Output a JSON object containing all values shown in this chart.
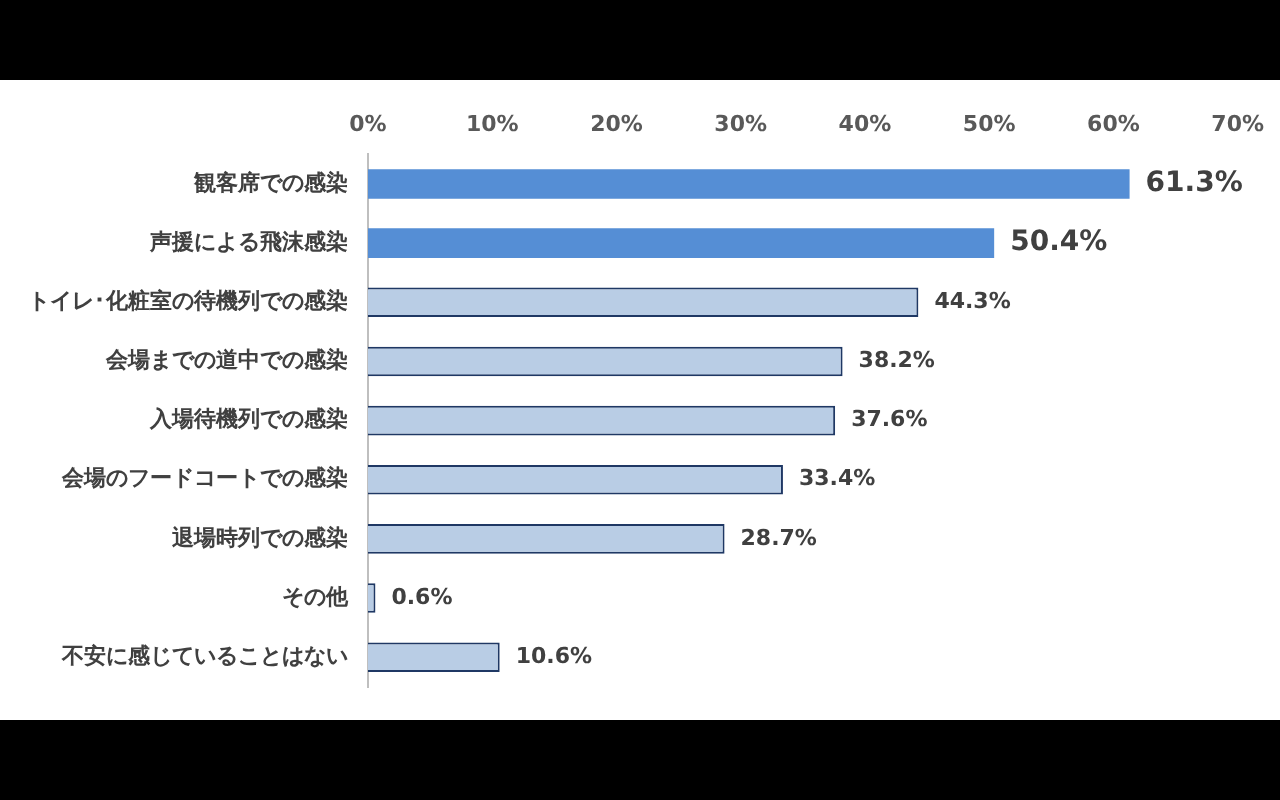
{
  "chart_data": {
    "type": "bar",
    "orientation": "horizontal",
    "categories": [
      "観客席での感染",
      "声援による飛沫感染",
      "トイレ･化粧室の待機列での感染",
      "会場までの道中での感染",
      "入場待機列での感染",
      "会場のフードコートでの感染",
      "退場時列での感染",
      "その他",
      "不安に感じていることはない"
    ],
    "values": [
      61.3,
      50.4,
      44.3,
      38.2,
      37.6,
      33.4,
      28.7,
      0.6,
      10.6
    ],
    "colors": [
      "#558ed5",
      "#558ed5",
      "#b9cde5",
      "#b9cde5",
      "#b9cde5",
      "#b9cde5",
      "#b9cde5",
      "#b9cde5",
      "#b9cde5"
    ],
    "value_labels": [
      "61.3%",
      "50.4%",
      "44.3%",
      "38.2%",
      "37.6%",
      "33.4%",
      "28.7%",
      "0.6%",
      "10.6%"
    ],
    "xlim": [
      0,
      70
    ],
    "xticks": [
      {
        "value": 0,
        "label": "0%"
      },
      {
        "value": 10,
        "label": "10%"
      },
      {
        "value": 20,
        "label": "20%"
      },
      {
        "value": 30,
        "label": "30%"
      },
      {
        "value": 40,
        "label": "40%"
      },
      {
        "value": 50,
        "label": "50%"
      },
      {
        "value": 60,
        "label": "60%"
      },
      {
        "value": 70,
        "label": "70%"
      }
    ],
    "grid": false,
    "legend": false
  }
}
